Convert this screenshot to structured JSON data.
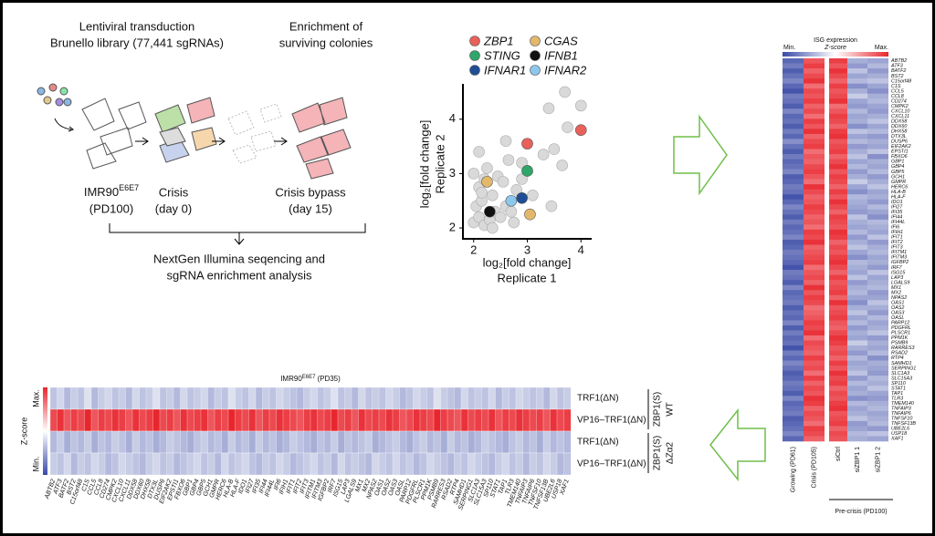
{
  "schematic": {
    "step1_title": [
      "Lentiviral transduction",
      "Brunello library (77,441 sgRNAs)"
    ],
    "step3_title": [
      "Enrichment of",
      "surviving colonies"
    ],
    "cells": [
      {
        "name": "IMR90",
        "sup": "E6E7",
        "sub": "(PD100)"
      },
      {
        "name": "Crisis",
        "sub": "(day 0)"
      },
      {
        "name": "Crisis bypass",
        "sub": "(day 15)"
      }
    ],
    "analysis": [
      "NextGen Illumina seqencing and",
      "sgRNA enrichment analysis"
    ]
  },
  "chart_data": {
    "type": "scatter",
    "x_label": "log₂[fold change]",
    "x_sublabel": "Replicate 1",
    "y_label": "log₂[fold change]",
    "y_sublabel": "Replicate 2",
    "xlim": [
      1.8,
      4.2
    ],
    "ylim": [
      1.8,
      4.65
    ],
    "xticks": [
      2,
      3,
      4
    ],
    "yticks": [
      2,
      3,
      4
    ],
    "series": [
      {
        "color": "#d9d9d9",
        "x": [
          2.0,
          2.1,
          2.2,
          2.05,
          2.15,
          2.3,
          2.4,
          2.5,
          2.1,
          2.2,
          2.35,
          2.6,
          2.7,
          2.8,
          2.45,
          2.55,
          2.25,
          2.0,
          2.1,
          2.9,
          3.0,
          2.65,
          2.75,
          3.3,
          3.5,
          3.45,
          3.1,
          2.6,
          3.75,
          3.65,
          3.4,
          4.0,
          3.7,
          2.9,
          2.35,
          2.15
        ],
        "values": [
          2.1,
          2.2,
          2.05,
          2.4,
          2.5,
          2.15,
          2.3,
          2.2,
          2.75,
          2.9,
          2.6,
          2.4,
          2.3,
          2.7,
          2.95,
          2.85,
          3.1,
          3.0,
          3.4,
          3.2,
          3.05,
          3.25,
          2.1,
          3.35,
          3.45,
          2.4,
          2.6,
          3.6,
          3.85,
          3.15,
          4.2,
          4.25,
          4.5,
          2.9,
          2.0,
          2.65
        ]
      },
      {
        "name": "ZBP1",
        "color": "#e8615a",
        "x": [
          3.0,
          4.0
        ],
        "values": [
          3.55,
          3.8
        ]
      },
      {
        "name": "CGAS",
        "color": "#e3b86a",
        "x": [
          2.25,
          3.05
        ],
        "values": [
          2.85,
          2.25
        ]
      },
      {
        "name": "STING",
        "color": "#2ea66a",
        "x": [
          3.0
        ],
        "values": [
          3.05
        ]
      },
      {
        "name": "IFNB1",
        "color": "#111111",
        "x": [
          2.3
        ],
        "values": [
          2.3
        ]
      },
      {
        "name": "IFNAR1",
        "color": "#1f4e96",
        "x": [
          2.9
        ],
        "values": [
          2.55
        ]
      },
      {
        "name": "IFNAR2",
        "color": "#8cc8ee",
        "x": [
          2.7
        ],
        "values": [
          2.5
        ]
      }
    ]
  },
  "genes": [
    "ABTB2",
    "ATF3",
    "BATF2",
    "BST2",
    "C15orf48",
    "C1S",
    "CCL5",
    "CCL8",
    "CD274",
    "CMPK2",
    "CXCL10",
    "CXCL11",
    "DDX58",
    "DDX60",
    "DHX58",
    "DTX3L",
    "DUSP6",
    "EIF2AK2",
    "EPSTI1",
    "FBXO6",
    "GBP1",
    "GBP4",
    "GBP5",
    "GCH1",
    "GMPR",
    "HERC6",
    "HLA-B",
    "HLA-F",
    "IDO1",
    "IFI27",
    "IFI35",
    "IFI44",
    "IFI44L",
    "IFI6",
    "IFIH1",
    "IFIT1",
    "IFIT2",
    "IFIT3",
    "IFITM1",
    "IFITM3",
    "IGFBP2",
    "IRF7",
    "ISG15",
    "LAP3",
    "LGALS9",
    "MX1",
    "MX2",
    "NPAS2",
    "OAS1",
    "OAS2",
    "OAS3",
    "OASL",
    "PARP12",
    "PDGFRL",
    "PLSCR1",
    "PPM1K",
    "PSMB9",
    "RARRES3",
    "RSAD2",
    "RTP4",
    "SAMHD1",
    "SERPING1",
    "SLC1A3",
    "SLC15A3",
    "SP110",
    "STAT1",
    "TAP1",
    "TLR3",
    "TMEM140",
    "TNFAIP3",
    "TNFAIP6",
    "TNFSF10",
    "TNFSF13B",
    "UBE2L6",
    "USP18",
    "XAF1"
  ],
  "color_scale": {
    "low": "#3a4aa6",
    "mid": "#ffffff",
    "high": "#e8262e",
    "zlim": [
      -1.8,
      1.8
    ]
  },
  "heatmap_right": {
    "title": "ISG  expression",
    "scale_label": "Z-score",
    "min_label": "Min.",
    "max_label": "Max.",
    "group_label": "Pre-crisis (PD100)",
    "columns": [
      {
        "label": "Growing (PD61)",
        "values": [
          -1.5,
          -1.3,
          -1.6,
          -1.4,
          -1.2,
          -1.5,
          -1.7,
          -1.3,
          -1.4,
          -1.6,
          -1.2,
          -1.5,
          -1.4,
          -1.6,
          -1.3,
          -1.5,
          -1.1,
          -1.4,
          -1.6,
          -1.3,
          -1.5,
          -1.4,
          -1.2,
          -1.6,
          -1.5,
          -1.3,
          -1.4,
          -1.7,
          -1.5,
          -1.2,
          -1.4,
          -1.6,
          -1.3,
          -1.5,
          -1.4,
          -1.2,
          -1.6,
          -1.5,
          -1.3,
          -1.4,
          -1.5,
          -1.7,
          -1.3,
          -1.4,
          -1.6,
          -1.2,
          -1.5,
          -1.4,
          -1.3,
          -1.6,
          -1.4,
          -1.5,
          -1.2,
          -1.6,
          -1.3,
          -1.5,
          -1.4,
          -1.7,
          -1.3,
          -1.5,
          -1.2,
          -1.4,
          -1.6,
          -1.5,
          -1.3,
          -1.4,
          -1.6,
          -1.2,
          -1.5,
          -1.4,
          -1.3,
          -1.6,
          -1.5,
          -1.4,
          -1.2,
          -1.5
        ]
      },
      {
        "label": "Crisis (PD105)",
        "values": [
          1.4,
          1.6,
          1.3,
          1.5,
          1.7,
          1.2,
          1.5,
          1.4,
          1.6,
          1.3,
          1.5,
          1.2,
          1.6,
          1.4,
          1.7,
          1.3,
          1.5,
          1.6,
          1.2,
          1.4,
          1.3,
          1.5,
          1.6,
          1.4,
          1.2,
          1.7,
          1.5,
          1.3,
          1.4,
          1.6,
          1.5,
          1.3,
          1.4,
          1.2,
          1.6,
          1.5,
          1.7,
          1.3,
          1.4,
          1.5,
          1.6,
          1.2,
          1.4,
          1.5,
          1.3,
          1.7,
          1.4,
          1.6,
          1.5,
          1.2,
          1.3,
          1.4,
          1.6,
          1.5,
          1.7,
          1.2,
          1.5,
          1.4,
          1.3,
          1.6,
          1.4,
          1.5,
          1.2,
          1.6,
          1.3,
          1.5,
          1.4,
          1.7,
          1.6,
          1.3,
          1.5,
          1.4,
          1.2,
          1.6,
          1.5,
          1.3
        ]
      },
      {
        "label": "siCtrl",
        "values": [
          1.6,
          1.4,
          1.7,
          1.5,
          1.3,
          1.6,
          1.4,
          1.5,
          1.7,
          1.2,
          1.4,
          1.6,
          1.5,
          1.3,
          1.6,
          1.7,
          1.4,
          1.5,
          1.6,
          1.3,
          1.5,
          1.7,
          1.4,
          1.6,
          1.5,
          1.3,
          1.6,
          1.4,
          1.7,
          1.5,
          1.3,
          1.6,
          1.5,
          1.4,
          1.7,
          1.6,
          1.3,
          1.5,
          1.4,
          1.6,
          1.7,
          1.5,
          1.3,
          1.6,
          1.4,
          1.5,
          1.6,
          1.3,
          1.7,
          1.4,
          1.5,
          1.6,
          1.4,
          1.3,
          1.5,
          1.7,
          1.6,
          1.4,
          1.5,
          1.3,
          1.6,
          1.4,
          1.7,
          1.5,
          1.6,
          1.3,
          1.5,
          1.4,
          1.6,
          1.7,
          1.4,
          1.5,
          1.6,
          1.3,
          1.5,
          1.4
        ]
      },
      {
        "label": "siZBP1 1",
        "values": [
          -0.8,
          -1.0,
          -0.6,
          -0.9,
          -0.7,
          -1.1,
          -0.8,
          -0.5,
          -0.9,
          -1.0,
          -0.7,
          -0.9,
          -0.8,
          -1.1,
          -0.6,
          -0.9,
          -0.7,
          -1.0,
          -0.8,
          -0.6,
          -0.9,
          -0.7,
          -1.0,
          -0.8,
          -0.5,
          -0.9,
          -1.1,
          -0.7,
          -0.8,
          -0.9,
          -1.0,
          -0.6,
          -0.8,
          -0.9,
          -0.7,
          -1.0,
          -0.8,
          -0.6,
          -0.9,
          -1.1,
          -0.7,
          -0.8,
          -0.9,
          -0.6,
          -1.0,
          -0.8,
          -0.7,
          -0.9,
          -1.1,
          -0.8,
          -0.6,
          -0.9,
          -0.7,
          -1.0,
          -0.8,
          -0.9,
          -0.5,
          -0.8,
          -1.0,
          -0.7,
          -0.9,
          -0.8,
          -0.6,
          -1.0,
          -0.7,
          -0.9,
          -0.8,
          -1.1,
          -0.7,
          -0.9,
          -0.8,
          -0.6,
          -1.0,
          -0.9,
          -0.7,
          -0.8
        ]
      },
      {
        "label": "siZBP1 2",
        "values": [
          -0.9,
          -0.7,
          -1.0,
          -0.8,
          -0.6,
          -0.9,
          -1.1,
          -0.8,
          -0.7,
          -0.9,
          -1.0,
          -0.8,
          -0.6,
          -0.9,
          -0.7,
          -1.0,
          -0.8,
          -0.9,
          -0.6,
          -1.1,
          -0.8,
          -0.9,
          -0.7,
          -1.0,
          -0.8,
          -0.6,
          -0.9,
          -0.8,
          -1.0,
          -0.7,
          -0.9,
          -1.1,
          -0.7,
          -0.8,
          -0.9,
          -0.6,
          -1.0,
          -0.8,
          -0.7,
          -0.9,
          -0.8,
          -1.0,
          -0.6,
          -0.9,
          -0.8,
          -0.7,
          -1.0,
          -0.9,
          -0.6,
          -0.8,
          -1.0,
          -0.7,
          -0.9,
          -0.8,
          -0.6,
          -1.0,
          -0.8,
          -0.9,
          -0.7,
          -1.1,
          -0.8,
          -0.9,
          -1.0,
          -0.7,
          -0.8,
          -0.6,
          -0.9,
          -1.0,
          -0.8,
          -0.7,
          -0.9,
          -0.8,
          -0.7,
          -1.0,
          -0.6,
          -0.9
        ]
      }
    ]
  },
  "heatmap_bottom": {
    "title": "IMR90",
    "title_sup": "E6E7",
    "title_tail": "(PD35)",
    "scale_label": "Z-score",
    "min_label": "Min.",
    "max_label": "Max.",
    "groups": [
      {
        "label": "ZBP1(S)",
        "sublabel": "WT"
      },
      {
        "label": "ZBP1(S)",
        "sublabel": "ΔZα2"
      }
    ],
    "rows": [
      {
        "label": "TRF1(ΔN)",
        "values": [
          -0.6,
          -0.4,
          -0.7,
          -0.5,
          -0.6,
          -0.3,
          -0.7,
          -0.5,
          -0.4,
          -0.6,
          -0.5,
          -0.7,
          -0.4,
          -0.6,
          -0.5,
          -0.3,
          -0.6,
          -0.5,
          -0.7,
          -0.4,
          -0.6,
          -0.5,
          -0.4,
          -0.7,
          -0.5,
          -0.6,
          -0.3,
          -0.5,
          -0.6,
          -0.4,
          -0.7,
          -0.5,
          -0.6,
          -0.4,
          -0.5,
          -0.6,
          -0.7,
          -0.5,
          -0.4,
          -0.6,
          -0.5,
          -0.3,
          -0.6,
          -0.5,
          -0.7,
          -0.4,
          -0.6,
          -0.5,
          -0.6,
          -0.4,
          -0.5,
          -0.7,
          -0.6,
          -0.4,
          -0.5,
          -0.6,
          -0.3,
          -0.5,
          -0.6,
          -0.7,
          -0.4,
          -0.6,
          -0.5,
          -0.6,
          -0.4,
          -0.7,
          -0.5,
          -0.6,
          -0.4,
          -0.5,
          -0.6,
          -0.5,
          -0.7,
          -0.4,
          -0.6,
          -0.5
        ]
      },
      {
        "label": "VP16–TRF1(ΔN)",
        "values": [
          1.5,
          1.7,
          1.4,
          1.6,
          1.5,
          1.8,
          1.4,
          1.6,
          1.5,
          1.7,
          1.6,
          1.4,
          1.7,
          1.5,
          1.6,
          1.8,
          1.5,
          1.6,
          1.4,
          1.7,
          1.5,
          1.6,
          1.7,
          1.4,
          1.6,
          1.5,
          1.8,
          1.6,
          1.5,
          1.7,
          1.4,
          1.6,
          1.5,
          1.7,
          1.6,
          1.5,
          1.4,
          1.6,
          1.7,
          1.5,
          1.6,
          1.8,
          1.5,
          1.6,
          1.4,
          1.7,
          1.5,
          1.6,
          1.5,
          1.7,
          1.6,
          1.4,
          1.5,
          1.7,
          1.6,
          1.5,
          1.8,
          1.6,
          1.5,
          1.4,
          1.7,
          1.5,
          1.6,
          1.5,
          1.7,
          1.4,
          1.6,
          1.5,
          1.7,
          1.6,
          1.5,
          1.6,
          1.4,
          1.7,
          1.5,
          1.6
        ]
      },
      {
        "label": "TRF1(ΔN)",
        "values": [
          -0.7,
          -0.5,
          -0.8,
          -0.6,
          -0.7,
          -0.5,
          -0.8,
          -0.6,
          -0.7,
          -0.5,
          -0.6,
          -0.8,
          -0.5,
          -0.7,
          -0.6,
          -0.8,
          -0.7,
          -0.5,
          -0.6,
          -0.7,
          -0.8,
          -0.6,
          -0.5,
          -0.7,
          -0.6,
          -0.8,
          -0.5,
          -0.7,
          -0.6,
          -0.8,
          -0.5,
          -0.7,
          -0.6,
          -0.8,
          -0.7,
          -0.5,
          -0.6,
          -0.7,
          -0.8,
          -0.6,
          -0.7,
          -0.5,
          -0.8,
          -0.6,
          -0.7,
          -0.6,
          -0.5,
          -0.8,
          -0.7,
          -0.6,
          -0.5,
          -0.7,
          -0.8,
          -0.6,
          -0.5,
          -0.7,
          -0.6,
          -0.8,
          -0.5,
          -0.7,
          -0.6,
          -0.8,
          -0.7,
          -0.5,
          -0.6,
          -0.7,
          -0.8,
          -0.6,
          -0.5,
          -0.7,
          -0.6,
          -0.8,
          -0.5,
          -0.7,
          -0.6,
          -0.7
        ]
      },
      {
        "label": "VP16–TRF1(ΔN)",
        "values": [
          -0.5,
          -0.6,
          -0.4,
          -0.7,
          -0.5,
          -0.6,
          -0.4,
          -0.5,
          -0.7,
          -0.6,
          -0.4,
          -0.5,
          -0.6,
          -0.7,
          -0.5,
          -0.4,
          -0.6,
          -0.5,
          -0.7,
          -0.6,
          -0.5,
          -0.4,
          -0.6,
          -0.5,
          -0.7,
          -0.4,
          -0.6,
          -0.5,
          -0.4,
          -0.6,
          -0.7,
          -0.5,
          -0.6,
          -0.4,
          -0.5,
          -0.7,
          -0.6,
          -0.5,
          -0.4,
          -0.6,
          -0.5,
          -0.7,
          -0.4,
          -0.6,
          -0.5,
          -0.6,
          -0.7,
          -0.4,
          -0.5,
          -0.6,
          -0.4,
          -0.6,
          -0.5,
          -0.7,
          -0.6,
          -0.4,
          -0.5,
          -0.6,
          -0.7,
          -0.5,
          -0.6,
          -0.4,
          -0.5,
          -0.6,
          -0.7,
          -0.5,
          -0.4,
          -0.6,
          -0.5,
          -0.7,
          -0.5,
          -0.6,
          -0.4,
          -0.5,
          -0.7,
          -0.6
        ]
      }
    ]
  }
}
